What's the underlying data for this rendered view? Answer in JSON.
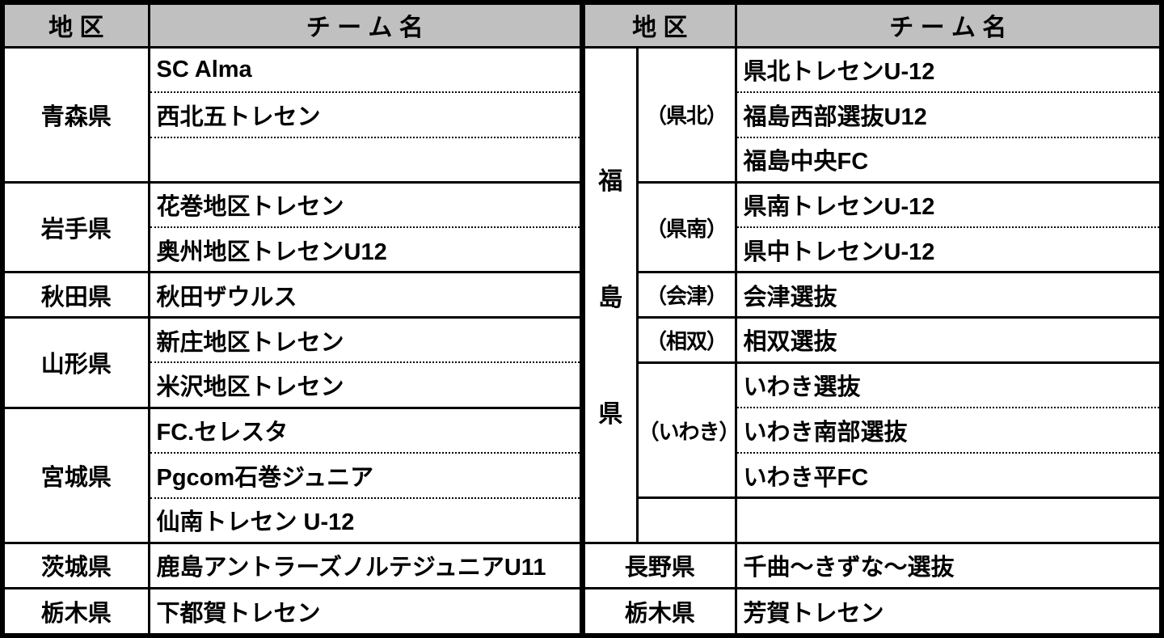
{
  "colors": {
    "header_bg": "#c0c0c0",
    "border": "#000000",
    "background": "#ffffff"
  },
  "left_table": {
    "header": {
      "district": "地 区",
      "team": "チ ー ム 名"
    },
    "groups": [
      {
        "prefecture": "青森県",
        "teams": [
          "SC Alma",
          "西北五トレセン",
          ""
        ]
      },
      {
        "prefecture": "岩手県",
        "teams": [
          "花巻地区トレセン",
          "奥州地区トレセンU12"
        ]
      },
      {
        "prefecture": "秋田県",
        "teams": [
          "秋田ザウルス"
        ]
      },
      {
        "prefecture": "山形県",
        "teams": [
          "新庄地区トレセン",
          "米沢地区トレセン"
        ]
      },
      {
        "prefecture": "宮城県",
        "teams": [
          "FC.セレスタ",
          "Pgcom石巻ジュニア",
          "仙南トレセン U-12"
        ]
      },
      {
        "prefecture": "茨城県",
        "teams": [
          "鹿島アントラーズノルテジュニアU11"
        ]
      },
      {
        "prefecture": "栃木県",
        "teams": [
          "下都賀トレセン"
        ]
      }
    ]
  },
  "right_table": {
    "header": {
      "district": "地 区",
      "team": "チ ー ム 名"
    },
    "fukushima": {
      "prefecture": "福島県",
      "subgroups": [
        {
          "district": "（県北）",
          "teams": [
            "県北トレセンU-12",
            "福島西部選抜U12",
            "福島中央FC"
          ]
        },
        {
          "district": "（県南）",
          "teams": [
            "県南トレセンU-12",
            "県中トレセンU-12"
          ]
        },
        {
          "district": "（会津）",
          "teams": [
            "会津選抜"
          ]
        },
        {
          "district": "（相双）",
          "teams": [
            "相双選抜"
          ]
        },
        {
          "district": "（いわき）",
          "teams": [
            "いわき選抜",
            "いわき南部選抜",
            "いわき平FC"
          ]
        },
        {
          "district": "",
          "teams": [
            ""
          ]
        }
      ]
    },
    "groups": [
      {
        "prefecture": "長野県",
        "teams": [
          "千曲～きずな～選抜"
        ]
      },
      {
        "prefecture": "栃木県",
        "teams": [
          "芳賀トレセン"
        ]
      }
    ]
  }
}
